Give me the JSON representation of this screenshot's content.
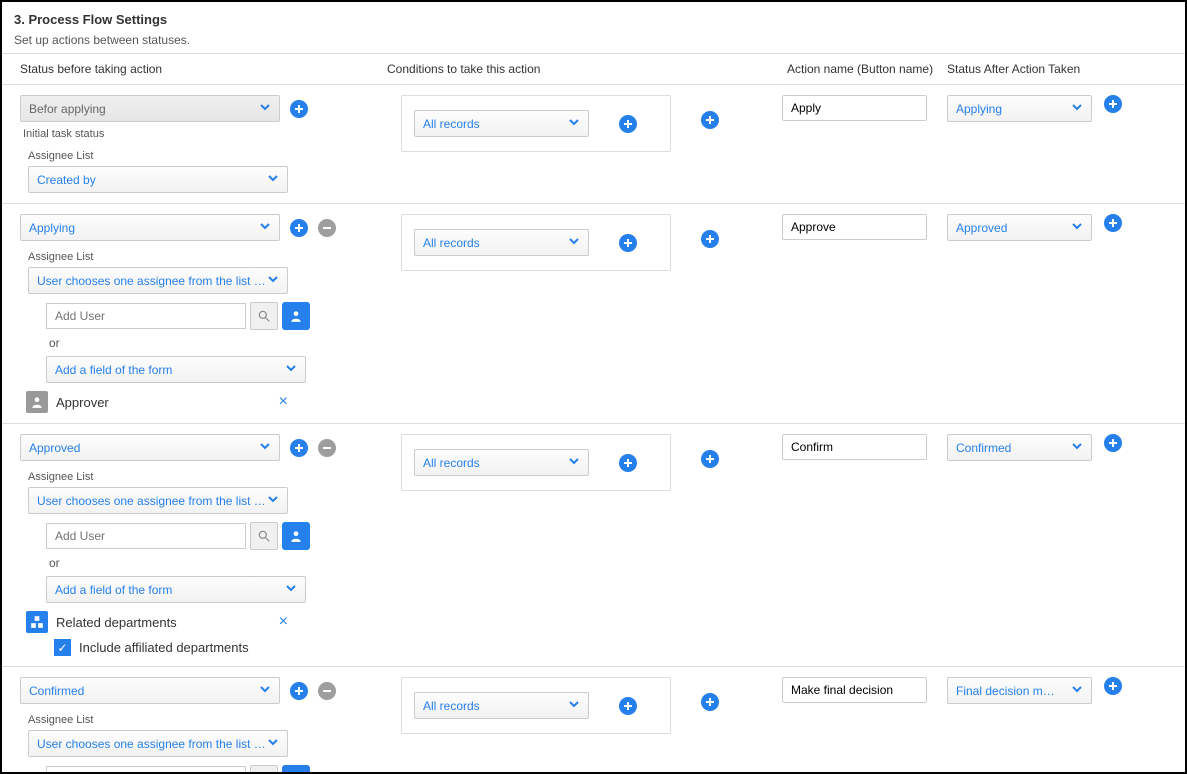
{
  "header": {
    "title": "3. Process Flow Settings",
    "subtitle": "Set up actions between statuses."
  },
  "columns": {
    "before": "Status before taking action",
    "conditions": "Conditions to take this action",
    "action": "Action name (Button name)",
    "after": "Status After Action Taken"
  },
  "labels": {
    "initial_status": "Initial task status",
    "assignee_list": "Assignee List",
    "or": "or",
    "add_user_placeholder": "Add User",
    "include_affiliated": "Include affiliated departments"
  },
  "rows": [
    {
      "status_before": "Befor applying",
      "status_before_disabled": true,
      "show_remove": false,
      "initial": true,
      "assignee_dropdown": "Created by",
      "condition": "All records",
      "action_name": "Apply",
      "status_after": "Applying"
    },
    {
      "status_before": "Applying",
      "show_remove": true,
      "assignee_dropdown": "User chooses one assignee from the list t…",
      "show_user_picker": true,
      "add_field": "Add a field of the form",
      "added_entity": {
        "type": "user",
        "label": "Approver"
      },
      "condition": "All records",
      "action_name": "Approve",
      "status_after": "Approved"
    },
    {
      "status_before": "Approved",
      "show_remove": true,
      "assignee_dropdown": "User chooses one assignee from the list t…",
      "show_user_picker": true,
      "add_field": "Add a field of the form",
      "added_entity": {
        "type": "org",
        "label": "Related departments",
        "checkbox": true
      },
      "condition": "All records",
      "action_name": "Confirm",
      "status_after": "Confirmed"
    },
    {
      "status_before": "Confirmed",
      "show_remove": true,
      "assignee_dropdown": "User chooses one assignee from the list t…",
      "show_user_picker": true,
      "condition": "All records",
      "action_name": "Make final decision",
      "status_after": "Final decision m…"
    }
  ],
  "colors": {
    "accent": "#2680eb",
    "muted": "#9e9e9e",
    "border": "#dddddd"
  }
}
